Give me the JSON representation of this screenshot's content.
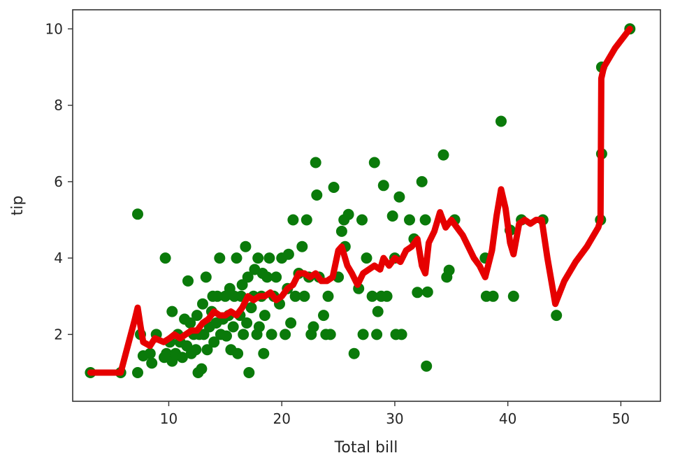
{
  "chart_data": {
    "type": "scatter",
    "title": "",
    "xlabel": "Total bill",
    "ylabel": "tip",
    "xlim": [
      1.5,
      53.5
    ],
    "ylim": [
      0.25,
      10.5
    ],
    "xticks": [
      10,
      20,
      30,
      40,
      50
    ],
    "yticks": [
      2,
      4,
      6,
      8,
      10
    ],
    "grid": false,
    "colors": {
      "scatter": "#0a7a0a",
      "line": "#e60000",
      "axis": "#333333"
    },
    "series": [
      {
        "type": "scatter",
        "points": [
          [
            3.07,
            1.0
          ],
          [
            5.75,
            1.0
          ],
          [
            7.25,
            1.0
          ],
          [
            7.25,
            5.15
          ],
          [
            7.5,
            2.0
          ],
          [
            7.74,
            1.44
          ],
          [
            8.35,
            1.5
          ],
          [
            8.5,
            1.25
          ],
          [
            8.9,
            2.0
          ],
          [
            9.6,
            1.4
          ],
          [
            9.7,
            4.0
          ],
          [
            9.8,
            1.5
          ],
          [
            10.1,
            1.8
          ],
          [
            10.3,
            2.6
          ],
          [
            10.3,
            1.3
          ],
          [
            10.6,
            1.5
          ],
          [
            10.8,
            2.0
          ],
          [
            11.0,
            1.8
          ],
          [
            11.2,
            1.4
          ],
          [
            11.4,
            2.4
          ],
          [
            11.6,
            1.7
          ],
          [
            11.7,
            3.4
          ],
          [
            11.9,
            2.3
          ],
          [
            12.0,
            1.5
          ],
          [
            12.2,
            2.0
          ],
          [
            12.4,
            1.6
          ],
          [
            12.5,
            2.5
          ],
          [
            12.6,
            1.0
          ],
          [
            12.7,
            2.0
          ],
          [
            12.9,
            1.1
          ],
          [
            13.0,
            2.8
          ],
          [
            13.1,
            2.0
          ],
          [
            13.3,
            3.5
          ],
          [
            13.4,
            1.6
          ],
          [
            13.6,
            2.2
          ],
          [
            13.8,
            2.6
          ],
          [
            13.9,
            3.0
          ],
          [
            14.0,
            1.8
          ],
          [
            14.2,
            2.3
          ],
          [
            14.3,
            3.0
          ],
          [
            14.5,
            4.0
          ],
          [
            14.6,
            2.0
          ],
          [
            14.8,
            2.4
          ],
          [
            15.0,
            3.0
          ],
          [
            15.1,
            1.96
          ],
          [
            15.3,
            2.5
          ],
          [
            15.4,
            3.2
          ],
          [
            15.5,
            1.6
          ],
          [
            15.7,
            2.2
          ],
          [
            15.8,
            3.0
          ],
          [
            16.0,
            4.0
          ],
          [
            16.1,
            1.5
          ],
          [
            16.3,
            2.5
          ],
          [
            16.4,
            3.0
          ],
          [
            16.5,
            3.3
          ],
          [
            16.6,
            2.0
          ],
          [
            16.8,
            4.3
          ],
          [
            16.9,
            2.3
          ],
          [
            17.0,
            3.5
          ],
          [
            17.1,
            1.0
          ],
          [
            17.3,
            2.7
          ],
          [
            17.5,
            3.0
          ],
          [
            17.6,
            3.7
          ],
          [
            17.8,
            2.0
          ],
          [
            17.9,
            4.0
          ],
          [
            18.0,
            2.2
          ],
          [
            18.2,
            3.0
          ],
          [
            18.3,
            3.6
          ],
          [
            18.4,
            1.5
          ],
          [
            18.5,
            2.5
          ],
          [
            18.7,
            3.5
          ],
          [
            18.9,
            4.0
          ],
          [
            19.1,
            2.0
          ],
          [
            19.3,
            3.0
          ],
          [
            19.5,
            3.5
          ],
          [
            19.8,
            2.8
          ],
          [
            20.0,
            4.0
          ],
          [
            20.3,
            2.0
          ],
          [
            20.5,
            3.2
          ],
          [
            20.6,
            4.1
          ],
          [
            20.8,
            2.3
          ],
          [
            21.0,
            5.0
          ],
          [
            21.2,
            3.0
          ],
          [
            21.5,
            3.6
          ],
          [
            21.8,
            4.3
          ],
          [
            22.0,
            3.0
          ],
          [
            22.2,
            5.0
          ],
          [
            22.4,
            3.5
          ],
          [
            22.6,
            2.0
          ],
          [
            22.8,
            2.2
          ],
          [
            23.0,
            6.5
          ],
          [
            23.1,
            5.65
          ],
          [
            23.3,
            3.5
          ],
          [
            23.7,
            2.5
          ],
          [
            23.9,
            2.0
          ],
          [
            24.1,
            3.0
          ],
          [
            24.3,
            2.0
          ],
          [
            24.6,
            5.85
          ],
          [
            25.0,
            3.5
          ],
          [
            25.3,
            4.7
          ],
          [
            25.5,
            5.0
          ],
          [
            25.6,
            4.3
          ],
          [
            25.9,
            5.14
          ],
          [
            26.4,
            1.5
          ],
          [
            26.8,
            3.2
          ],
          [
            27.1,
            5.0
          ],
          [
            27.2,
            2.0
          ],
          [
            27.5,
            4.0
          ],
          [
            28.0,
            3.0
          ],
          [
            28.2,
            6.5
          ],
          [
            28.4,
            2.0
          ],
          [
            28.5,
            2.6
          ],
          [
            28.8,
            3.0
          ],
          [
            29.0,
            5.9
          ],
          [
            29.3,
            3.0
          ],
          [
            29.8,
            5.1
          ],
          [
            30.0,
            4.0
          ],
          [
            30.1,
            2.0
          ],
          [
            30.4,
            5.6
          ],
          [
            30.6,
            2.0
          ],
          [
            31.3,
            5.0
          ],
          [
            31.7,
            4.5
          ],
          [
            32.0,
            3.1
          ],
          [
            32.4,
            6.0
          ],
          [
            32.7,
            5.0
          ],
          [
            32.8,
            1.17
          ],
          [
            32.9,
            3.11
          ],
          [
            34.3,
            6.7
          ],
          [
            34.6,
            3.5
          ],
          [
            34.8,
            3.68
          ],
          [
            35.3,
            5.0
          ],
          [
            38.0,
            4.0
          ],
          [
            38.1,
            3.0
          ],
          [
            38.7,
            3.0
          ],
          [
            39.4,
            7.58
          ],
          [
            40.2,
            4.73
          ],
          [
            40.5,
            3.0
          ],
          [
            41.2,
            5.0
          ],
          [
            43.1,
            5.0
          ],
          [
            44.3,
            2.5
          ],
          [
            48.2,
            5.0
          ],
          [
            48.3,
            6.73
          ],
          [
            48.3,
            9.0
          ],
          [
            50.8,
            10.0
          ]
        ]
      },
      {
        "type": "line",
        "points": [
          [
            3.07,
            1.0
          ],
          [
            5.75,
            1.0
          ],
          [
            7.0,
            2.4
          ],
          [
            7.25,
            2.7
          ],
          [
            7.51,
            2.2
          ],
          [
            7.74,
            1.8
          ],
          [
            8.35,
            1.7
          ],
          [
            8.77,
            1.9
          ],
          [
            9.55,
            1.8
          ],
          [
            10.07,
            1.9
          ],
          [
            10.5,
            2.0
          ],
          [
            11.0,
            1.9
          ],
          [
            11.5,
            2.0
          ],
          [
            12.0,
            2.1
          ],
          [
            12.5,
            2.1
          ],
          [
            13.0,
            2.3
          ],
          [
            13.5,
            2.4
          ],
          [
            14.0,
            2.6
          ],
          [
            14.5,
            2.5
          ],
          [
            15.0,
            2.5
          ],
          [
            15.5,
            2.6
          ],
          [
            16.0,
            2.5
          ],
          [
            16.5,
            2.7
          ],
          [
            17.0,
            3.0
          ],
          [
            17.5,
            2.9
          ],
          [
            18.0,
            3.0
          ],
          [
            18.5,
            3.0
          ],
          [
            19.0,
            3.1
          ],
          [
            19.5,
            2.9
          ],
          [
            20.0,
            3.0
          ],
          [
            20.5,
            3.2
          ],
          [
            21.0,
            3.3
          ],
          [
            21.5,
            3.6
          ],
          [
            22.0,
            3.6
          ],
          [
            22.5,
            3.5
          ],
          [
            23.0,
            3.6
          ],
          [
            23.5,
            3.4
          ],
          [
            24.0,
            3.4
          ],
          [
            24.5,
            3.5
          ],
          [
            25.0,
            4.2
          ],
          [
            25.3,
            4.3
          ],
          [
            25.8,
            3.8
          ],
          [
            26.2,
            3.6
          ],
          [
            26.7,
            3.3
          ],
          [
            27.2,
            3.6
          ],
          [
            27.7,
            3.7
          ],
          [
            28.2,
            3.8
          ],
          [
            28.7,
            3.7
          ],
          [
            29.0,
            4.0
          ],
          [
            29.5,
            3.8
          ],
          [
            30.0,
            4.0
          ],
          [
            30.5,
            3.9
          ],
          [
            31.0,
            4.2
          ],
          [
            31.5,
            4.3
          ],
          [
            32.0,
            4.5
          ],
          [
            32.4,
            3.8
          ],
          [
            32.7,
            3.6
          ],
          [
            33.0,
            4.4
          ],
          [
            33.5,
            4.7
          ],
          [
            34.0,
            5.2
          ],
          [
            34.5,
            4.8
          ],
          [
            35.0,
            5.0
          ],
          [
            35.5,
            4.8
          ],
          [
            36.0,
            4.6
          ],
          [
            36.5,
            4.3
          ],
          [
            37.0,
            4.0
          ],
          [
            37.5,
            3.8
          ],
          [
            38.0,
            3.5
          ],
          [
            38.6,
            4.2
          ],
          [
            39.0,
            5.1
          ],
          [
            39.4,
            5.8
          ],
          [
            39.8,
            5.3
          ],
          [
            40.2,
            4.4
          ],
          [
            40.5,
            4.1
          ],
          [
            41.0,
            4.9
          ],
          [
            41.5,
            5.0
          ],
          [
            42.0,
            4.9
          ],
          [
            42.5,
            5.0
          ],
          [
            43.0,
            5.0
          ],
          [
            43.5,
            4.0
          ],
          [
            44.2,
            2.8
          ],
          [
            45.0,
            3.4
          ],
          [
            46.0,
            3.9
          ],
          [
            47.0,
            4.3
          ],
          [
            48.0,
            4.8
          ],
          [
            48.2,
            5.0
          ],
          [
            48.27,
            8.7
          ],
          [
            48.5,
            9.0
          ],
          [
            49.5,
            9.5
          ],
          [
            50.8,
            10.0
          ]
        ]
      }
    ]
  }
}
